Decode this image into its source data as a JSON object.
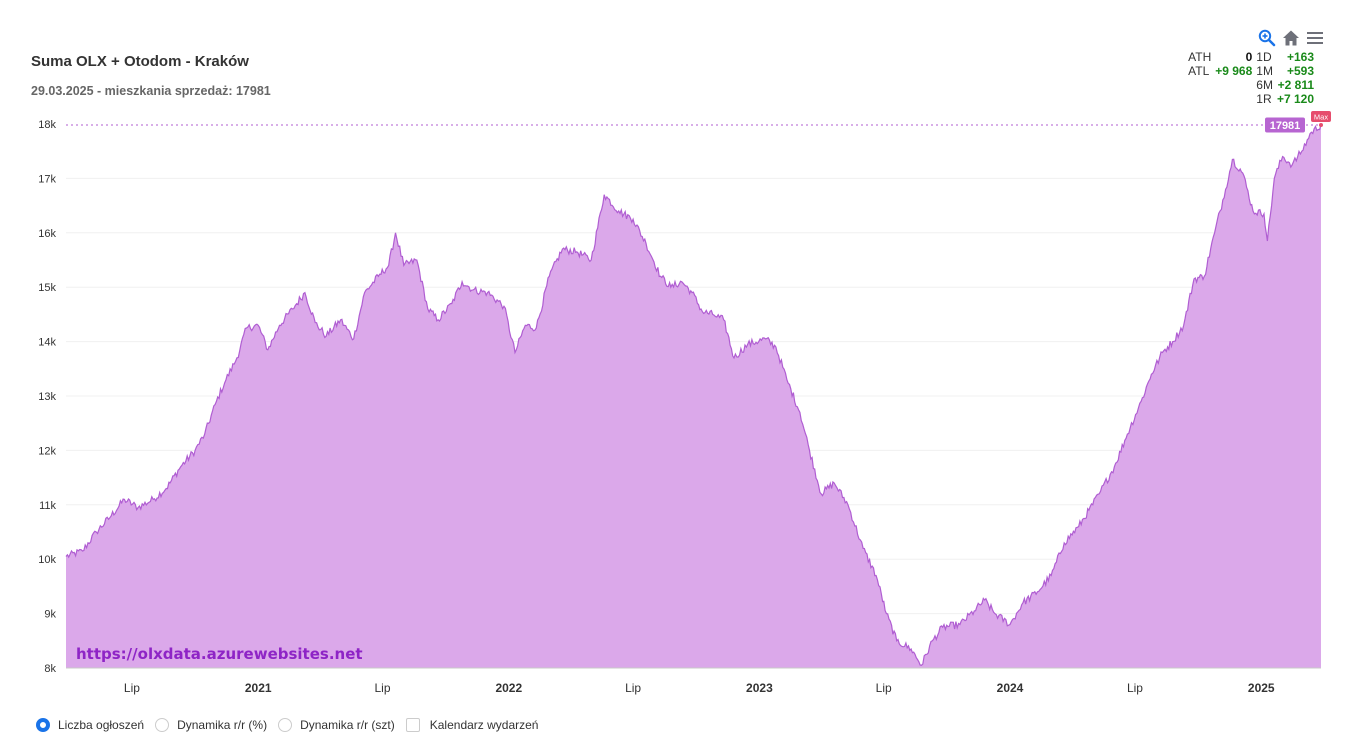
{
  "header": {
    "title": "Suma OLX + Otodom - Kraków",
    "subtitle": "29.03.2025 - mieszkania sprzedaż: 17981"
  },
  "stats": {
    "ath_label": "ATH",
    "ath_value": "0",
    "atl_label": "ATL",
    "atl_value": "+9 968",
    "d1_label": "1D",
    "d1_value": "+163",
    "m1_label": "1M",
    "m1_value": "+593",
    "m6_label": "6M",
    "m6_value": "+2 811",
    "r1_label": "1R",
    "r1_value": "+7 120"
  },
  "watermark": "https://olxdata.azurewebsites.net",
  "legend": {
    "items": [
      "Liczba ogłoszeń",
      "Dynamika r/r (%)",
      "Dynamika r/r (szt)",
      "Kalendarz wydarzeń"
    ]
  },
  "colors": {
    "area_fill": "#dba8ea",
    "area_line": "#b05ed2",
    "current_badge": "#b765d1",
    "max_badge": "#e64d6d",
    "positive": "#1a8a1a",
    "accent": "#1a73e8"
  },
  "chart_data": {
    "type": "area",
    "series_name": "Liczba ogłoszeń",
    "x_range": [
      "2020-03-27",
      "2025-03-29"
    ],
    "ylim": [
      8000,
      18000
    ],
    "yticks": [
      8000,
      9000,
      10000,
      11000,
      12000,
      13000,
      14000,
      15000,
      16000,
      17000,
      18000
    ],
    "ytick_labels": [
      "8k",
      "9k",
      "10k",
      "11k",
      "12k",
      "13k",
      "14k",
      "15k",
      "16k",
      "17k",
      "18k"
    ],
    "xticks": [
      {
        "date": "2020-07-01",
        "label": "Lip",
        "bold": false
      },
      {
        "date": "2021-01-01",
        "label": "2021",
        "bold": true
      },
      {
        "date": "2021-07-01",
        "label": "Lip",
        "bold": false
      },
      {
        "date": "2022-01-01",
        "label": "2022",
        "bold": true
      },
      {
        "date": "2022-07-01",
        "label": "Lip",
        "bold": false
      },
      {
        "date": "2023-01-01",
        "label": "2023",
        "bold": true
      },
      {
        "date": "2023-07-01",
        "label": "Lip",
        "bold": false
      },
      {
        "date": "2024-01-01",
        "label": "2024",
        "bold": true
      },
      {
        "date": "2024-07-01",
        "label": "Lip",
        "bold": false
      },
      {
        "date": "2025-01-01",
        "label": "2025",
        "bold": true
      }
    ],
    "points": [
      [
        "2020-03-27",
        10050
      ],
      [
        "2020-04-20",
        10150
      ],
      [
        "2020-05-10",
        10500
      ],
      [
        "2020-06-01",
        10800
      ],
      [
        "2020-06-20",
        11100
      ],
      [
        "2020-07-10",
        10950
      ],
      [
        "2020-08-01",
        11100
      ],
      [
        "2020-08-20",
        11300
      ],
      [
        "2020-09-10",
        11700
      ],
      [
        "2020-10-01",
        12000
      ],
      [
        "2020-10-15",
        12300
      ],
      [
        "2020-11-01",
        12900
      ],
      [
        "2020-11-15",
        13300
      ],
      [
        "2020-12-01",
        13700
      ],
      [
        "2020-12-15",
        14250
      ],
      [
        "2021-01-01",
        14300
      ],
      [
        "2021-01-15",
        13850
      ],
      [
        "2021-02-01",
        14300
      ],
      [
        "2021-02-20",
        14600
      ],
      [
        "2021-03-10",
        14900
      ],
      [
        "2021-03-25",
        14350
      ],
      [
        "2021-04-10",
        14100
      ],
      [
        "2021-05-01",
        14400
      ],
      [
        "2021-05-20",
        14050
      ],
      [
        "2021-06-05",
        14900
      ],
      [
        "2021-06-25",
        15200
      ],
      [
        "2021-07-10",
        15400
      ],
      [
        "2021-07-20",
        16000
      ],
      [
        "2021-08-01",
        15400
      ],
      [
        "2021-08-20",
        15500
      ],
      [
        "2021-09-05",
        14600
      ],
      [
        "2021-09-20",
        14400
      ],
      [
        "2021-10-10",
        14700
      ],
      [
        "2021-10-25",
        15100
      ],
      [
        "2021-11-10",
        14950
      ],
      [
        "2021-12-01",
        14900
      ],
      [
        "2021-12-25",
        14650
      ],
      [
        "2022-01-10",
        13800
      ],
      [
        "2022-01-25",
        14300
      ],
      [
        "2022-02-10",
        14250
      ],
      [
        "2022-03-01",
        15200
      ],
      [
        "2022-03-20",
        15700
      ],
      [
        "2022-04-10",
        15650
      ],
      [
        "2022-05-01",
        15500
      ],
      [
        "2022-05-20",
        16700
      ],
      [
        "2022-06-10",
        16400
      ],
      [
        "2022-07-01",
        16250
      ],
      [
        "2022-07-20",
        15800
      ],
      [
        "2022-08-10",
        15200
      ],
      [
        "2022-08-25",
        15000
      ],
      [
        "2022-09-10",
        15100
      ],
      [
        "2022-09-25",
        14900
      ],
      [
        "2022-10-10",
        14550
      ],
      [
        "2022-10-25",
        14500
      ],
      [
        "2022-11-10",
        14400
      ],
      [
        "2022-11-25",
        13700
      ],
      [
        "2022-12-15",
        13950
      ],
      [
        "2023-01-10",
        14050
      ],
      [
        "2023-01-25",
        13900
      ],
      [
        "2023-02-10",
        13300
      ],
      [
        "2023-03-01",
        12700
      ],
      [
        "2023-03-15",
        12000
      ],
      [
        "2023-04-01",
        11200
      ],
      [
        "2023-04-20",
        11400
      ],
      [
        "2023-05-10",
        11000
      ],
      [
        "2023-06-01",
        10200
      ],
      [
        "2023-06-20",
        9700
      ],
      [
        "2023-07-05",
        9000
      ],
      [
        "2023-07-20",
        8500
      ],
      [
        "2023-08-10",
        8350
      ],
      [
        "2023-08-25",
        8050
      ],
      [
        "2023-09-10",
        8500
      ],
      [
        "2023-09-25",
        8750
      ],
      [
        "2023-10-20",
        8800
      ],
      [
        "2023-11-10",
        9050
      ],
      [
        "2023-11-25",
        9250
      ],
      [
        "2023-12-10",
        9000
      ],
      [
        "2024-01-01",
        8800
      ],
      [
        "2024-01-20",
        9200
      ],
      [
        "2024-02-10",
        9400
      ],
      [
        "2024-03-01",
        9700
      ],
      [
        "2024-03-20",
        10300
      ],
      [
        "2024-04-10",
        10600
      ],
      [
        "2024-04-25",
        10900
      ],
      [
        "2024-05-10",
        11200
      ],
      [
        "2024-06-01",
        11700
      ],
      [
        "2024-06-20",
        12300
      ],
      [
        "2024-07-10",
        12900
      ],
      [
        "2024-07-25",
        13400
      ],
      [
        "2024-08-10",
        13800
      ],
      [
        "2024-08-25",
        14000
      ],
      [
        "2024-09-10",
        14300
      ],
      [
        "2024-09-25",
        15150
      ],
      [
        "2024-10-10",
        15200
      ],
      [
        "2024-10-25",
        16000
      ],
      [
        "2024-11-10",
        16800
      ],
      [
        "2024-11-20",
        17350
      ],
      [
        "2024-12-05",
        17100
      ],
      [
        "2024-12-20",
        16400
      ],
      [
        "2025-01-05",
        16350
      ],
      [
        "2025-01-10",
        15850
      ],
      [
        "2025-01-20",
        17000
      ],
      [
        "2025-02-01",
        17400
      ],
      [
        "2025-02-15",
        17250
      ],
      [
        "2025-03-01",
        17500
      ],
      [
        "2025-03-15",
        17850
      ],
      [
        "2025-03-29",
        17981
      ]
    ],
    "current_value": 17981,
    "current_label": "17981",
    "max_label": "Max"
  }
}
